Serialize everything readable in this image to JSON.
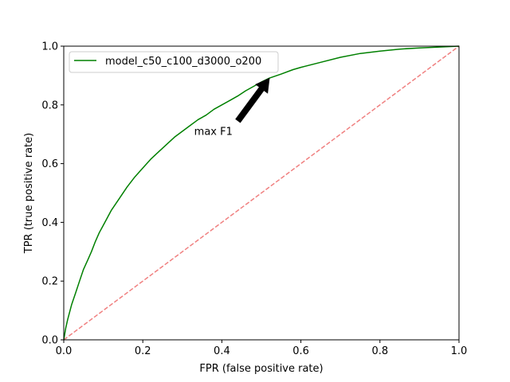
{
  "chart_data": {
    "type": "line",
    "title": "",
    "xlabel": "FPR (false positive rate)",
    "ylabel": "TPR (true positive rate)",
    "xlim": [
      0,
      1
    ],
    "ylim": [
      0,
      1
    ],
    "xticks": [
      "0.0",
      "0.2",
      "0.4",
      "0.6",
      "0.8",
      "1.0"
    ],
    "yticks": [
      "0.0",
      "0.2",
      "0.4",
      "0.6",
      "0.8",
      "1.0"
    ],
    "grid": false,
    "legend_position": "upper-left",
    "series": [
      {
        "name": "model_c50_c100_d3000_o200",
        "color": "#008000",
        "style": "solid",
        "x": [
          0.0,
          0.005,
          0.01,
          0.02,
          0.03,
          0.04,
          0.05,
          0.06,
          0.07,
          0.08,
          0.09,
          0.1,
          0.12,
          0.14,
          0.16,
          0.18,
          0.2,
          0.22,
          0.24,
          0.26,
          0.28,
          0.3,
          0.32,
          0.34,
          0.36,
          0.38,
          0.4,
          0.42,
          0.44,
          0.46,
          0.48,
          0.5,
          0.52,
          0.55,
          0.58,
          0.6,
          0.65,
          0.7,
          0.75,
          0.8,
          0.85,
          0.9,
          0.95,
          1.0
        ],
        "y": [
          0.0,
          0.04,
          0.07,
          0.12,
          0.16,
          0.2,
          0.24,
          0.27,
          0.3,
          0.335,
          0.365,
          0.39,
          0.44,
          0.48,
          0.52,
          0.555,
          0.585,
          0.615,
          0.64,
          0.665,
          0.69,
          0.71,
          0.73,
          0.75,
          0.765,
          0.785,
          0.8,
          0.815,
          0.83,
          0.848,
          0.863,
          0.878,
          0.891,
          0.905,
          0.92,
          0.928,
          0.945,
          0.962,
          0.975,
          0.983,
          0.99,
          0.994,
          0.997,
          1.0
        ]
      },
      {
        "name": "",
        "color": "#f08080",
        "style": "dashed",
        "x": [
          0,
          1
        ],
        "y": [
          0,
          1
        ]
      }
    ],
    "annotations": [
      {
        "text": "max F1",
        "point": [
          0.52,
          0.89
        ],
        "text_at": [
          0.33,
          0.7
        ]
      }
    ]
  }
}
